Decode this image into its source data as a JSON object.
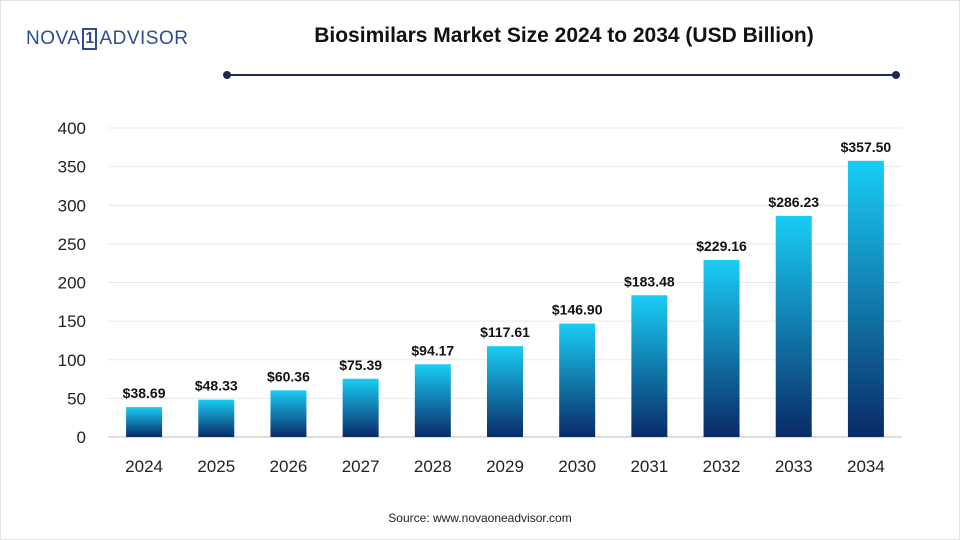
{
  "brand": {
    "part1": "NOVA",
    "box": "1",
    "part2": "ADVISOR"
  },
  "header": {
    "title": "Biosimilars Market Size 2024 to 2034 (USD Billion)"
  },
  "footer": {
    "source": "Source: www.novaoneadvisor.com"
  },
  "colors": {
    "bar_top": "#19cdf5",
    "bar_bottom": "#0a2a66",
    "grid": "#e8e8e8",
    "rule": "#1f2a4f"
  },
  "chart_data": {
    "type": "bar",
    "title": "Biosimilars Market Size 2024 to 2034 (USD Billion)",
    "categories": [
      "2024",
      "2025",
      "2026",
      "2027",
      "2028",
      "2029",
      "2030",
      "2031",
      "2032",
      "2033",
      "2034"
    ],
    "values": [
      38.69,
      48.33,
      60.36,
      75.39,
      94.17,
      117.61,
      146.9,
      183.48,
      229.16,
      286.23,
      357.5
    ],
    "labels": [
      "$38.69",
      "$48.33",
      "$60.36",
      "$75.39",
      "$94.17",
      "$117.61",
      "$146.90",
      "$183.48",
      "$229.16",
      "$286.23",
      "$357.50"
    ],
    "yticks": [
      "0",
      "50",
      "100",
      "150",
      "200",
      "250",
      "300",
      "350",
      "400"
    ],
    "ylim": [
      0,
      400
    ],
    "xlabel": "",
    "ylabel": "",
    "grid": true
  }
}
